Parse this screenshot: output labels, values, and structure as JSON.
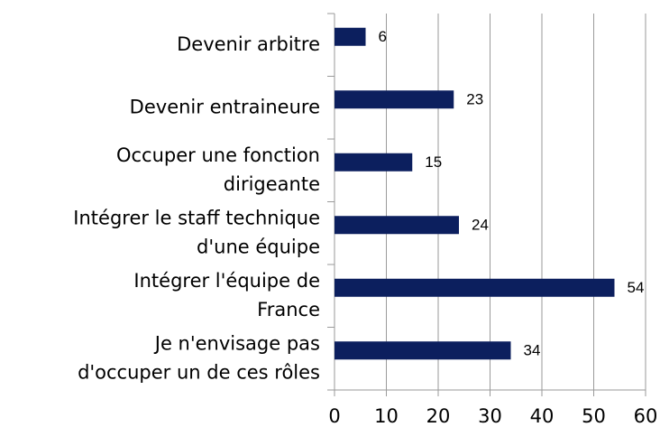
{
  "chart_data": {
    "type": "barh",
    "categories": [
      [
        "Devenir arbitre"
      ],
      [
        "Devenir entraineure"
      ],
      [
        "Occuper une fonction",
        "dirigeante"
      ],
      [
        "Intégrer le staff technique",
        "d'une équipe"
      ],
      [
        "Intégrer l'équipe de",
        "France"
      ],
      [
        "Je n'envisage pas",
        "d'occuper un de ces rôles"
      ]
    ],
    "values": [
      6,
      23,
      15,
      24,
      54,
      34
    ],
    "color": "#0c1f5e",
    "xlim": [
      0,
      60
    ],
    "xticks": [
      0,
      10,
      20,
      30,
      40,
      50,
      60
    ],
    "grid": true
  }
}
